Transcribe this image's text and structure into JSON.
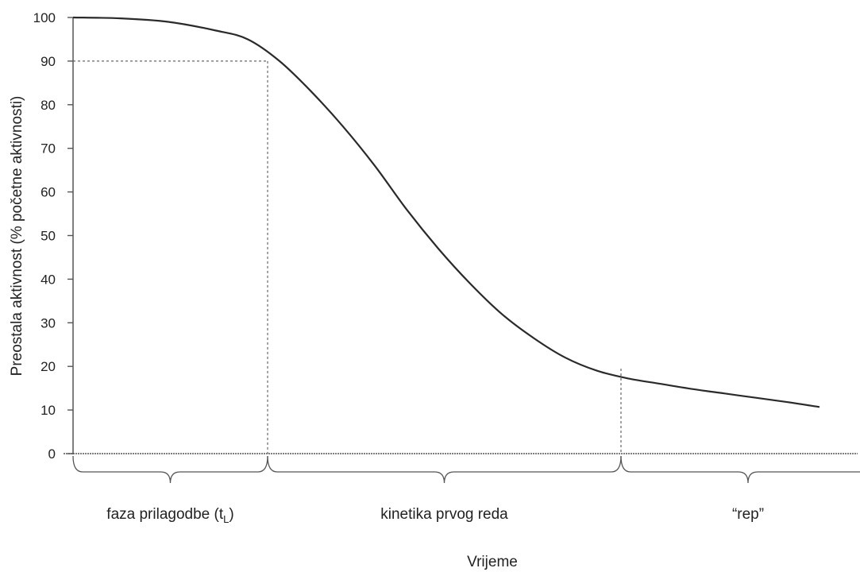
{
  "chart_data": {
    "type": "line",
    "ylabel": "Preostala aktivnost (% početne aktivnosti)",
    "xlabel": "Vrijeme",
    "ylim": [
      0,
      100
    ],
    "yticks": [
      "100",
      "90",
      "80",
      "70",
      "60",
      "50",
      "40",
      "30",
      "20",
      "10",
      "0"
    ],
    "grid": false,
    "series": [
      {
        "x": [
          0,
          3,
          6,
          9,
          11,
          13,
          15,
          17,
          19,
          21,
          23,
          25,
          27,
          29,
          31,
          33,
          35,
          37,
          39,
          41,
          43,
          45,
          47
        ],
        "y": [
          100,
          99.8,
          99,
          97,
          95,
          90,
          83,
          75,
          66,
          56,
          47,
          39,
          32,
          26.5,
          22,
          19,
          17.2,
          16,
          14.8,
          13.8,
          12.8,
          11.8,
          10.7
        ]
      }
    ],
    "lag_x": 12.25,
    "lag_y": 90,
    "tail_x": 34.5,
    "tail_y": 19.5,
    "phases": [
      {
        "label": "faza prilagodbe (t",
        "sub": "L",
        "suffix": ")",
        "x0": 0,
        "x1": 12.25
      },
      {
        "label": "kinetika prvog reda",
        "sub": "",
        "suffix": "",
        "x0": 12.25,
        "x1": 34.5
      },
      {
        "label": "“rep”",
        "sub": "",
        "suffix": "",
        "x0": 34.5,
        "x1": 50.5
      }
    ]
  },
  "colors": {
    "line": "#2a2a2a",
    "axis": "#555555",
    "dash": "#666666"
  }
}
